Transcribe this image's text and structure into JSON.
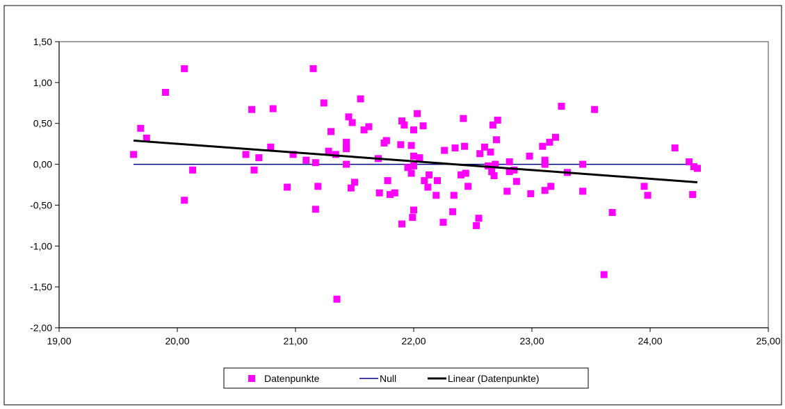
{
  "chart_data": {
    "type": "scatter",
    "title": "",
    "xlabel": "",
    "ylabel": "",
    "xlim": [
      19.0,
      25.0
    ],
    "ylim": [
      -2.0,
      1.5
    ],
    "x_ticks": [
      19,
      20,
      21,
      22,
      23,
      24,
      25
    ],
    "y_ticks": [
      1.5,
      1.0,
      0.5,
      0.0,
      -0.5,
      -1.0,
      -1.5,
      -2.0
    ],
    "x_tick_labels": [
      "19,00",
      "20,00",
      "21,00",
      "22,00",
      "23,00",
      "24,00",
      "25,00"
    ],
    "y_tick_labels": [
      "1,50",
      "1,00",
      "0,50",
      "0,00",
      "-0,50",
      "-1,00",
      "-1,50",
      "-2,00"
    ],
    "grid": false,
    "legend_position": "bottom",
    "series": [
      {
        "name": "Datenpunkte",
        "kind": "scatter",
        "color": "#FF00FF",
        "points": [
          [
            19.63,
            0.12
          ],
          [
            19.69,
            0.44
          ],
          [
            19.74,
            0.32
          ],
          [
            19.9,
            0.88
          ],
          [
            20.06,
            1.17
          ],
          [
            20.06,
            -0.44
          ],
          [
            20.13,
            -0.07
          ],
          [
            20.58,
            0.12
          ],
          [
            20.63,
            0.67
          ],
          [
            20.65,
            -0.07
          ],
          [
            20.69,
            0.08
          ],
          [
            20.79,
            0.21
          ],
          [
            20.81,
            0.68
          ],
          [
            20.93,
            -0.28
          ],
          [
            20.98,
            0.12
          ],
          [
            21.09,
            0.05
          ],
          [
            21.15,
            1.17
          ],
          [
            21.17,
            0.02
          ],
          [
            21.17,
            -0.55
          ],
          [
            21.19,
            -0.27
          ],
          [
            21.24,
            0.75
          ],
          [
            21.28,
            0.16
          ],
          [
            21.3,
            0.4
          ],
          [
            21.34,
            0.12
          ],
          [
            21.35,
            -1.65
          ],
          [
            21.43,
            0.0
          ],
          [
            21.43,
            0.22
          ],
          [
            21.43,
            0.27
          ],
          [
            21.43,
            0.19
          ],
          [
            21.45,
            0.58
          ],
          [
            21.47,
            -0.29
          ],
          [
            21.48,
            0.51
          ],
          [
            21.5,
            -0.22
          ],
          [
            21.55,
            0.8
          ],
          [
            21.58,
            0.42
          ],
          [
            21.62,
            0.46
          ],
          [
            21.7,
            0.07
          ],
          [
            21.71,
            -0.35
          ],
          [
            21.75,
            0.26
          ],
          [
            21.77,
            0.29
          ],
          [
            21.78,
            -0.2
          ],
          [
            21.8,
            -0.37
          ],
          [
            21.84,
            -0.35
          ],
          [
            21.89,
            0.24
          ],
          [
            21.9,
            0.53
          ],
          [
            21.9,
            -0.73
          ],
          [
            21.92,
            0.48
          ],
          [
            21.95,
            -0.04
          ],
          [
            21.98,
            0.23
          ],
          [
            21.98,
            -0.11
          ],
          [
            21.99,
            -0.65
          ],
          [
            22.0,
            -0.56
          ],
          [
            22.0,
            0.42
          ],
          [
            22.0,
            0.1
          ],
          [
            22.0,
            -0.02
          ],
          [
            22.03,
            0.62
          ],
          [
            22.05,
            0.08
          ],
          [
            22.08,
            0.47
          ],
          [
            22.09,
            -0.2
          ],
          [
            22.12,
            -0.28
          ],
          [
            22.13,
            -0.13
          ],
          [
            22.19,
            -0.38
          ],
          [
            22.2,
            -0.2
          ],
          [
            22.25,
            -0.71
          ],
          [
            22.26,
            0.17
          ],
          [
            22.33,
            -0.58
          ],
          [
            22.34,
            -0.38
          ],
          [
            22.35,
            0.2
          ],
          [
            22.4,
            -0.13
          ],
          [
            22.42,
            0.56
          ],
          [
            22.43,
            0.22
          ],
          [
            22.44,
            -0.11
          ],
          [
            22.46,
            -0.27
          ],
          [
            22.53,
            -0.75
          ],
          [
            22.55,
            -0.66
          ],
          [
            22.56,
            0.13
          ],
          [
            22.6,
            0.21
          ],
          [
            22.63,
            -0.02
          ],
          [
            22.65,
            0.15
          ],
          [
            22.66,
            -0.09
          ],
          [
            22.67,
            0.48
          ],
          [
            22.68,
            -0.14
          ],
          [
            22.69,
            0.0
          ],
          [
            22.7,
            0.3
          ],
          [
            22.71,
            0.54
          ],
          [
            22.79,
            -0.33
          ],
          [
            22.81,
            0.03
          ],
          [
            22.81,
            -0.09
          ],
          [
            22.85,
            -0.07
          ],
          [
            22.87,
            -0.21
          ],
          [
            22.98,
            0.1
          ],
          [
            22.99,
            -0.36
          ],
          [
            23.09,
            0.22
          ],
          [
            23.11,
            0.05
          ],
          [
            23.11,
            0.0
          ],
          [
            23.11,
            -0.32
          ],
          [
            23.15,
            0.27
          ],
          [
            23.16,
            -0.27
          ],
          [
            23.2,
            0.33
          ],
          [
            23.25,
            0.71
          ],
          [
            23.3,
            -0.1
          ],
          [
            23.43,
            0.0
          ],
          [
            23.43,
            -0.33
          ],
          [
            23.53,
            0.67
          ],
          [
            23.61,
            -1.35
          ],
          [
            23.68,
            -0.59
          ],
          [
            23.95,
            -0.27
          ],
          [
            23.98,
            -0.38
          ],
          [
            24.21,
            0.2
          ],
          [
            24.33,
            0.03
          ],
          [
            24.36,
            -0.37
          ],
          [
            24.37,
            -0.03
          ],
          [
            24.4,
            -0.05
          ]
        ]
      },
      {
        "name": "Null",
        "kind": "line",
        "color": "#000080",
        "points": [
          [
            19.63,
            0.0
          ],
          [
            24.4,
            0.0
          ]
        ]
      },
      {
        "name": "Linear (Datenpunkte)",
        "kind": "line",
        "color": "#000000",
        "points": [
          [
            19.63,
            0.29
          ],
          [
            24.4,
            -0.22
          ]
        ]
      }
    ]
  }
}
